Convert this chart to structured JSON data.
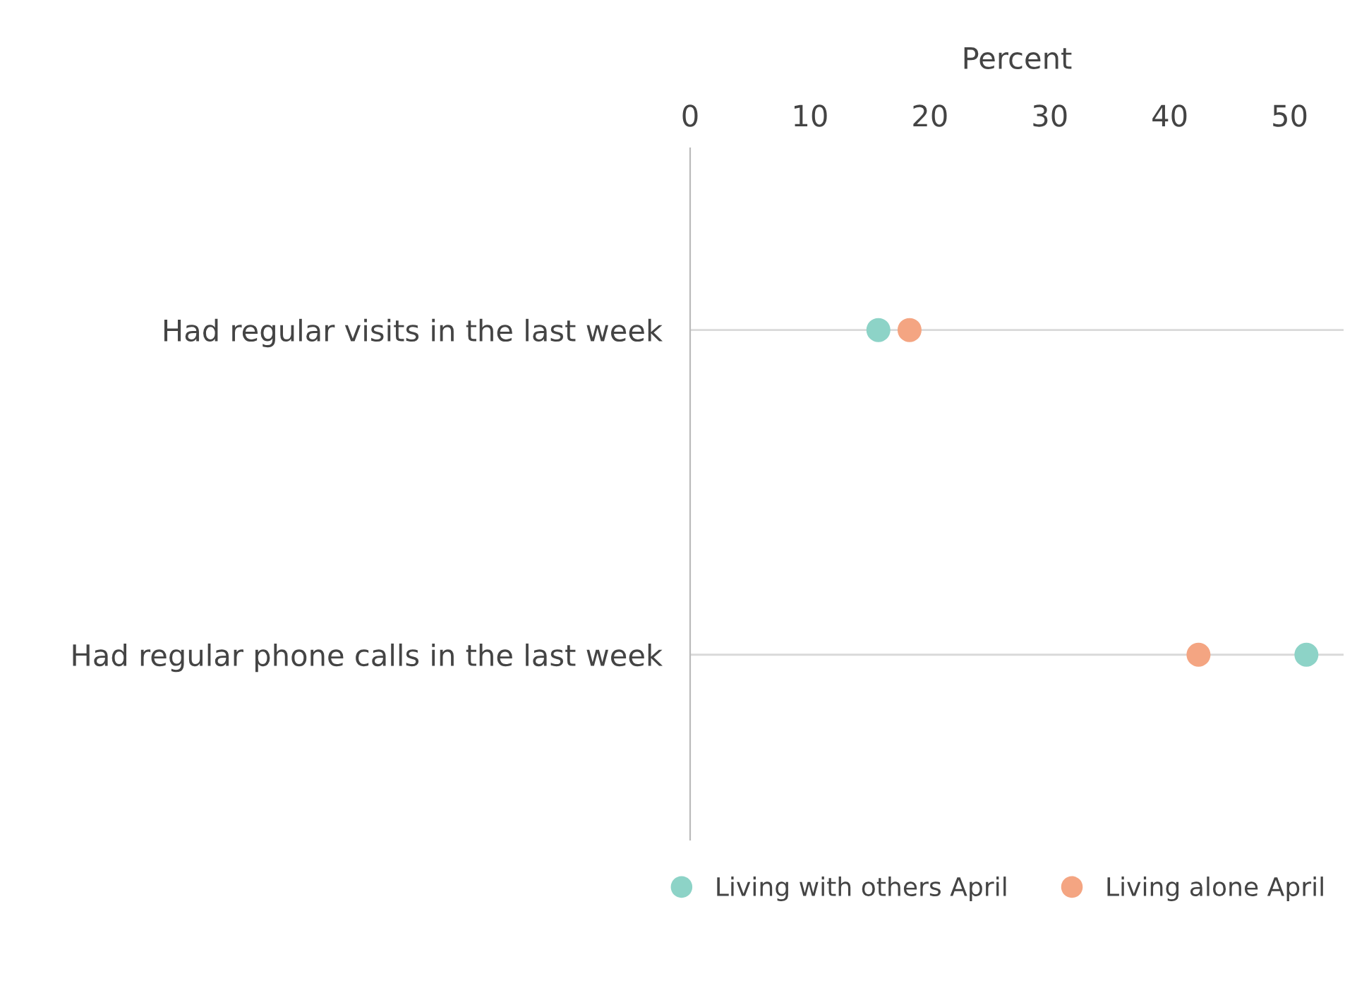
{
  "chart_data": {
    "type": "scatter",
    "orientation": "horizontal",
    "xlabel": "Percent",
    "categories": [
      "Had regular visits in the last week",
      "Had regular phone calls in the last week"
    ],
    "series": [
      {
        "name": "Living with others April",
        "color": "#8dd3c7",
        "values": [
          15.7,
          51.4
        ]
      },
      {
        "name": "Living alone April",
        "color": "#f4a582",
        "values": [
          18.3,
          42.4
        ]
      }
    ],
    "xlim": [
      0,
      54.5
    ],
    "xticks": [
      0,
      10,
      20,
      30,
      40,
      50
    ],
    "grid": "y",
    "legend": "bottom",
    "marker": "circle"
  }
}
